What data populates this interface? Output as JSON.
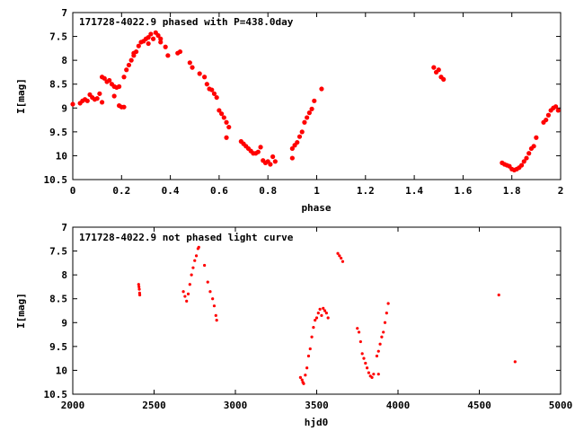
{
  "chart_data": [
    {
      "type": "scatter",
      "title": "171728-4022.9 phased with P=438.0day",
      "xlabel": "phase",
      "ylabel": "I[mag]",
      "xlim": [
        0,
        2
      ],
      "ylim": [
        10.5,
        7
      ],
      "y_inverted": true,
      "x_ticks": [
        "0",
        "0.2",
        "0.4",
        "0.6",
        "0.8",
        "1",
        "1.2",
        "1.4",
        "1.6",
        "1.8",
        "2"
      ],
      "y_ticks": [
        "7",
        "7.5",
        "8",
        "8.5",
        "9",
        "9.5",
        "10",
        "10.5"
      ],
      "marker_color": "#ff0000",
      "grid": false,
      "series": [
        {
          "points": [
            [
              0.0,
              8.92
            ],
            [
              0.03,
              8.9
            ],
            [
              0.04,
              8.85
            ],
            [
              0.05,
              8.82
            ],
            [
              0.06,
              8.85
            ],
            [
              0.07,
              8.72
            ],
            [
              0.08,
              8.78
            ],
            [
              0.09,
              8.82
            ],
            [
              0.1,
              8.8
            ],
            [
              0.11,
              8.7
            ],
            [
              0.12,
              8.35
            ],
            [
              0.12,
              8.88
            ],
            [
              0.13,
              8.38
            ],
            [
              0.14,
              8.45
            ],
            [
              0.15,
              8.42
            ],
            [
              0.16,
              8.5
            ],
            [
              0.17,
              8.55
            ],
            [
              0.17,
              8.75
            ],
            [
              0.18,
              8.57
            ],
            [
              0.19,
              8.55
            ],
            [
              0.19,
              8.95
            ],
            [
              0.2,
              8.98
            ],
            [
              0.21,
              8.98
            ],
            [
              0.21,
              8.35
            ],
            [
              0.22,
              8.2
            ],
            [
              0.23,
              8.1
            ],
            [
              0.24,
              8.0
            ],
            [
              0.25,
              7.9
            ],
            [
              0.25,
              7.85
            ],
            [
              0.26,
              7.82
            ],
            [
              0.27,
              7.7
            ],
            [
              0.28,
              7.62
            ],
            [
              0.29,
              7.6
            ],
            [
              0.3,
              7.55
            ],
            [
              0.31,
              7.65
            ],
            [
              0.31,
              7.52
            ],
            [
              0.32,
              7.45
            ],
            [
              0.33,
              7.55
            ],
            [
              0.34,
              7.42
            ],
            [
              0.35,
              7.48
            ],
            [
              0.36,
              7.62
            ],
            [
              0.36,
              7.55
            ],
            [
              0.38,
              7.72
            ],
            [
              0.39,
              7.9
            ],
            [
              0.43,
              7.85
            ],
            [
              0.44,
              7.82
            ],
            [
              0.48,
              8.05
            ],
            [
              0.49,
              8.15
            ],
            [
              0.52,
              8.28
            ],
            [
              0.54,
              8.35
            ],
            [
              0.55,
              8.5
            ],
            [
              0.56,
              8.6
            ],
            [
              0.57,
              8.62
            ],
            [
              0.58,
              8.7
            ],
            [
              0.59,
              8.78
            ],
            [
              0.6,
              9.05
            ],
            [
              0.61,
              9.12
            ],
            [
              0.62,
              9.2
            ],
            [
              0.63,
              9.3
            ],
            [
              0.63,
              9.62
            ],
            [
              0.64,
              9.4
            ],
            [
              0.69,
              9.7
            ],
            [
              0.7,
              9.75
            ],
            [
              0.71,
              9.8
            ],
            [
              0.72,
              9.85
            ],
            [
              0.73,
              9.9
            ],
            [
              0.74,
              9.95
            ],
            [
              0.75,
              9.95
            ],
            [
              0.76,
              9.92
            ],
            [
              0.77,
              9.82
            ],
            [
              0.78,
              10.1
            ],
            [
              0.79,
              10.15
            ],
            [
              0.8,
              10.12
            ],
            [
              0.81,
              10.18
            ],
            [
              0.82,
              10.02
            ],
            [
              0.83,
              10.12
            ],
            [
              0.9,
              9.85
            ],
            [
              0.91,
              9.78
            ],
            [
              0.92,
              9.72
            ],
            [
              0.93,
              9.6
            ],
            [
              0.94,
              9.5
            ],
            [
              0.95,
              9.3
            ],
            [
              0.96,
              9.2
            ],
            [
              0.97,
              9.1
            ],
            [
              0.98,
              9.02
            ],
            [
              0.99,
              8.85
            ],
            [
              1.02,
              8.6
            ],
            [
              0.9,
              10.05
            ],
            [
              1.48,
              8.15
            ],
            [
              1.49,
              8.25
            ],
            [
              1.5,
              8.2
            ],
            [
              1.51,
              8.35
            ],
            [
              1.52,
              8.4
            ],
            [
              1.76,
              10.15
            ],
            [
              1.77,
              10.18
            ],
            [
              1.78,
              10.2
            ],
            [
              1.79,
              10.22
            ],
            [
              1.8,
              10.28
            ],
            [
              1.81,
              10.3
            ],
            [
              1.82,
              10.28
            ],
            [
              1.83,
              10.25
            ],
            [
              1.84,
              10.2
            ],
            [
              1.85,
              10.12
            ],
            [
              1.86,
              10.05
            ],
            [
              1.87,
              9.95
            ],
            [
              1.88,
              9.85
            ],
            [
              1.89,
              9.8
            ],
            [
              1.9,
              9.62
            ],
            [
              1.93,
              9.3
            ],
            [
              1.94,
              9.25
            ],
            [
              1.95,
              9.15
            ],
            [
              1.96,
              9.05
            ],
            [
              1.97,
              9.0
            ],
            [
              1.98,
              8.97
            ],
            [
              1.99,
              9.05
            ]
          ]
        }
      ]
    },
    {
      "type": "scatter",
      "title": "171728-4022.9 not phased light curve",
      "xlabel": "hjd0",
      "ylabel": "I[mag]",
      "xlim": [
        2000,
        5000
      ],
      "ylim": [
        10.5,
        7
      ],
      "y_inverted": true,
      "x_ticks": [
        "2000",
        "2500",
        "3000",
        "3500",
        "4000",
        "4500",
        "5000"
      ],
      "y_ticks": [
        "7",
        "7.5",
        "8",
        "8.5",
        "9",
        "9.5",
        "10",
        "10.5"
      ],
      "marker_color": "#ff0000",
      "grid": false,
      "series": [
        {
          "points": [
            [
              2405,
              8.2
            ],
            [
              2407,
              8.25
            ],
            [
              2409,
              8.3
            ],
            [
              2411,
              8.38
            ],
            [
              2412,
              8.42
            ],
            [
              2680,
              8.35
            ],
            [
              2690,
              8.45
            ],
            [
              2700,
              8.55
            ],
            [
              2710,
              8.4
            ],
            [
              2720,
              8.2
            ],
            [
              2730,
              8.0
            ],
            [
              2740,
              7.85
            ],
            [
              2750,
              7.7
            ],
            [
              2760,
              7.6
            ],
            [
              2770,
              7.45
            ],
            [
              2775,
              7.42
            ],
            [
              2810,
              7.8
            ],
            [
              2830,
              8.15
            ],
            [
              2845,
              8.35
            ],
            [
              2860,
              8.5
            ],
            [
              2870,
              8.65
            ],
            [
              2880,
              8.85
            ],
            [
              2885,
              8.95
            ],
            [
              3400,
              10.15
            ],
            [
              3410,
              10.2
            ],
            [
              3415,
              10.25
            ],
            [
              3420,
              10.28
            ],
            [
              3430,
              10.1
            ],
            [
              3440,
              9.95
            ],
            [
              3450,
              9.7
            ],
            [
              3460,
              9.55
            ],
            [
              3470,
              9.3
            ],
            [
              3480,
              9.1
            ],
            [
              3490,
              8.95
            ],
            [
              3500,
              8.9
            ],
            [
              3510,
              8.8
            ],
            [
              3520,
              8.72
            ],
            [
              3530,
              8.85
            ],
            [
              3540,
              8.7
            ],
            [
              3550,
              8.75
            ],
            [
              3560,
              8.8
            ],
            [
              3570,
              8.9
            ],
            [
              3630,
              7.55
            ],
            [
              3640,
              7.6
            ],
            [
              3650,
              7.65
            ],
            [
              3660,
              7.72
            ],
            [
              3750,
              9.12
            ],
            [
              3760,
              9.2
            ],
            [
              3770,
              9.4
            ],
            [
              3780,
              9.65
            ],
            [
              3790,
              9.75
            ],
            [
              3800,
              9.85
            ],
            [
              3810,
              9.95
            ],
            [
              3820,
              10.05
            ],
            [
              3830,
              10.12
            ],
            [
              3840,
              10.15
            ],
            [
              3850,
              10.08
            ],
            [
              3870,
              9.7
            ],
            [
              3880,
              9.6
            ],
            [
              3890,
              9.45
            ],
            [
              3900,
              9.3
            ],
            [
              3910,
              9.2
            ],
            [
              3920,
              9.0
            ],
            [
              3930,
              8.8
            ],
            [
              3940,
              8.6
            ],
            [
              3880,
              10.08
            ],
            [
              4620,
              8.42
            ],
            [
              4720,
              9.82
            ]
          ]
        }
      ]
    }
  ]
}
